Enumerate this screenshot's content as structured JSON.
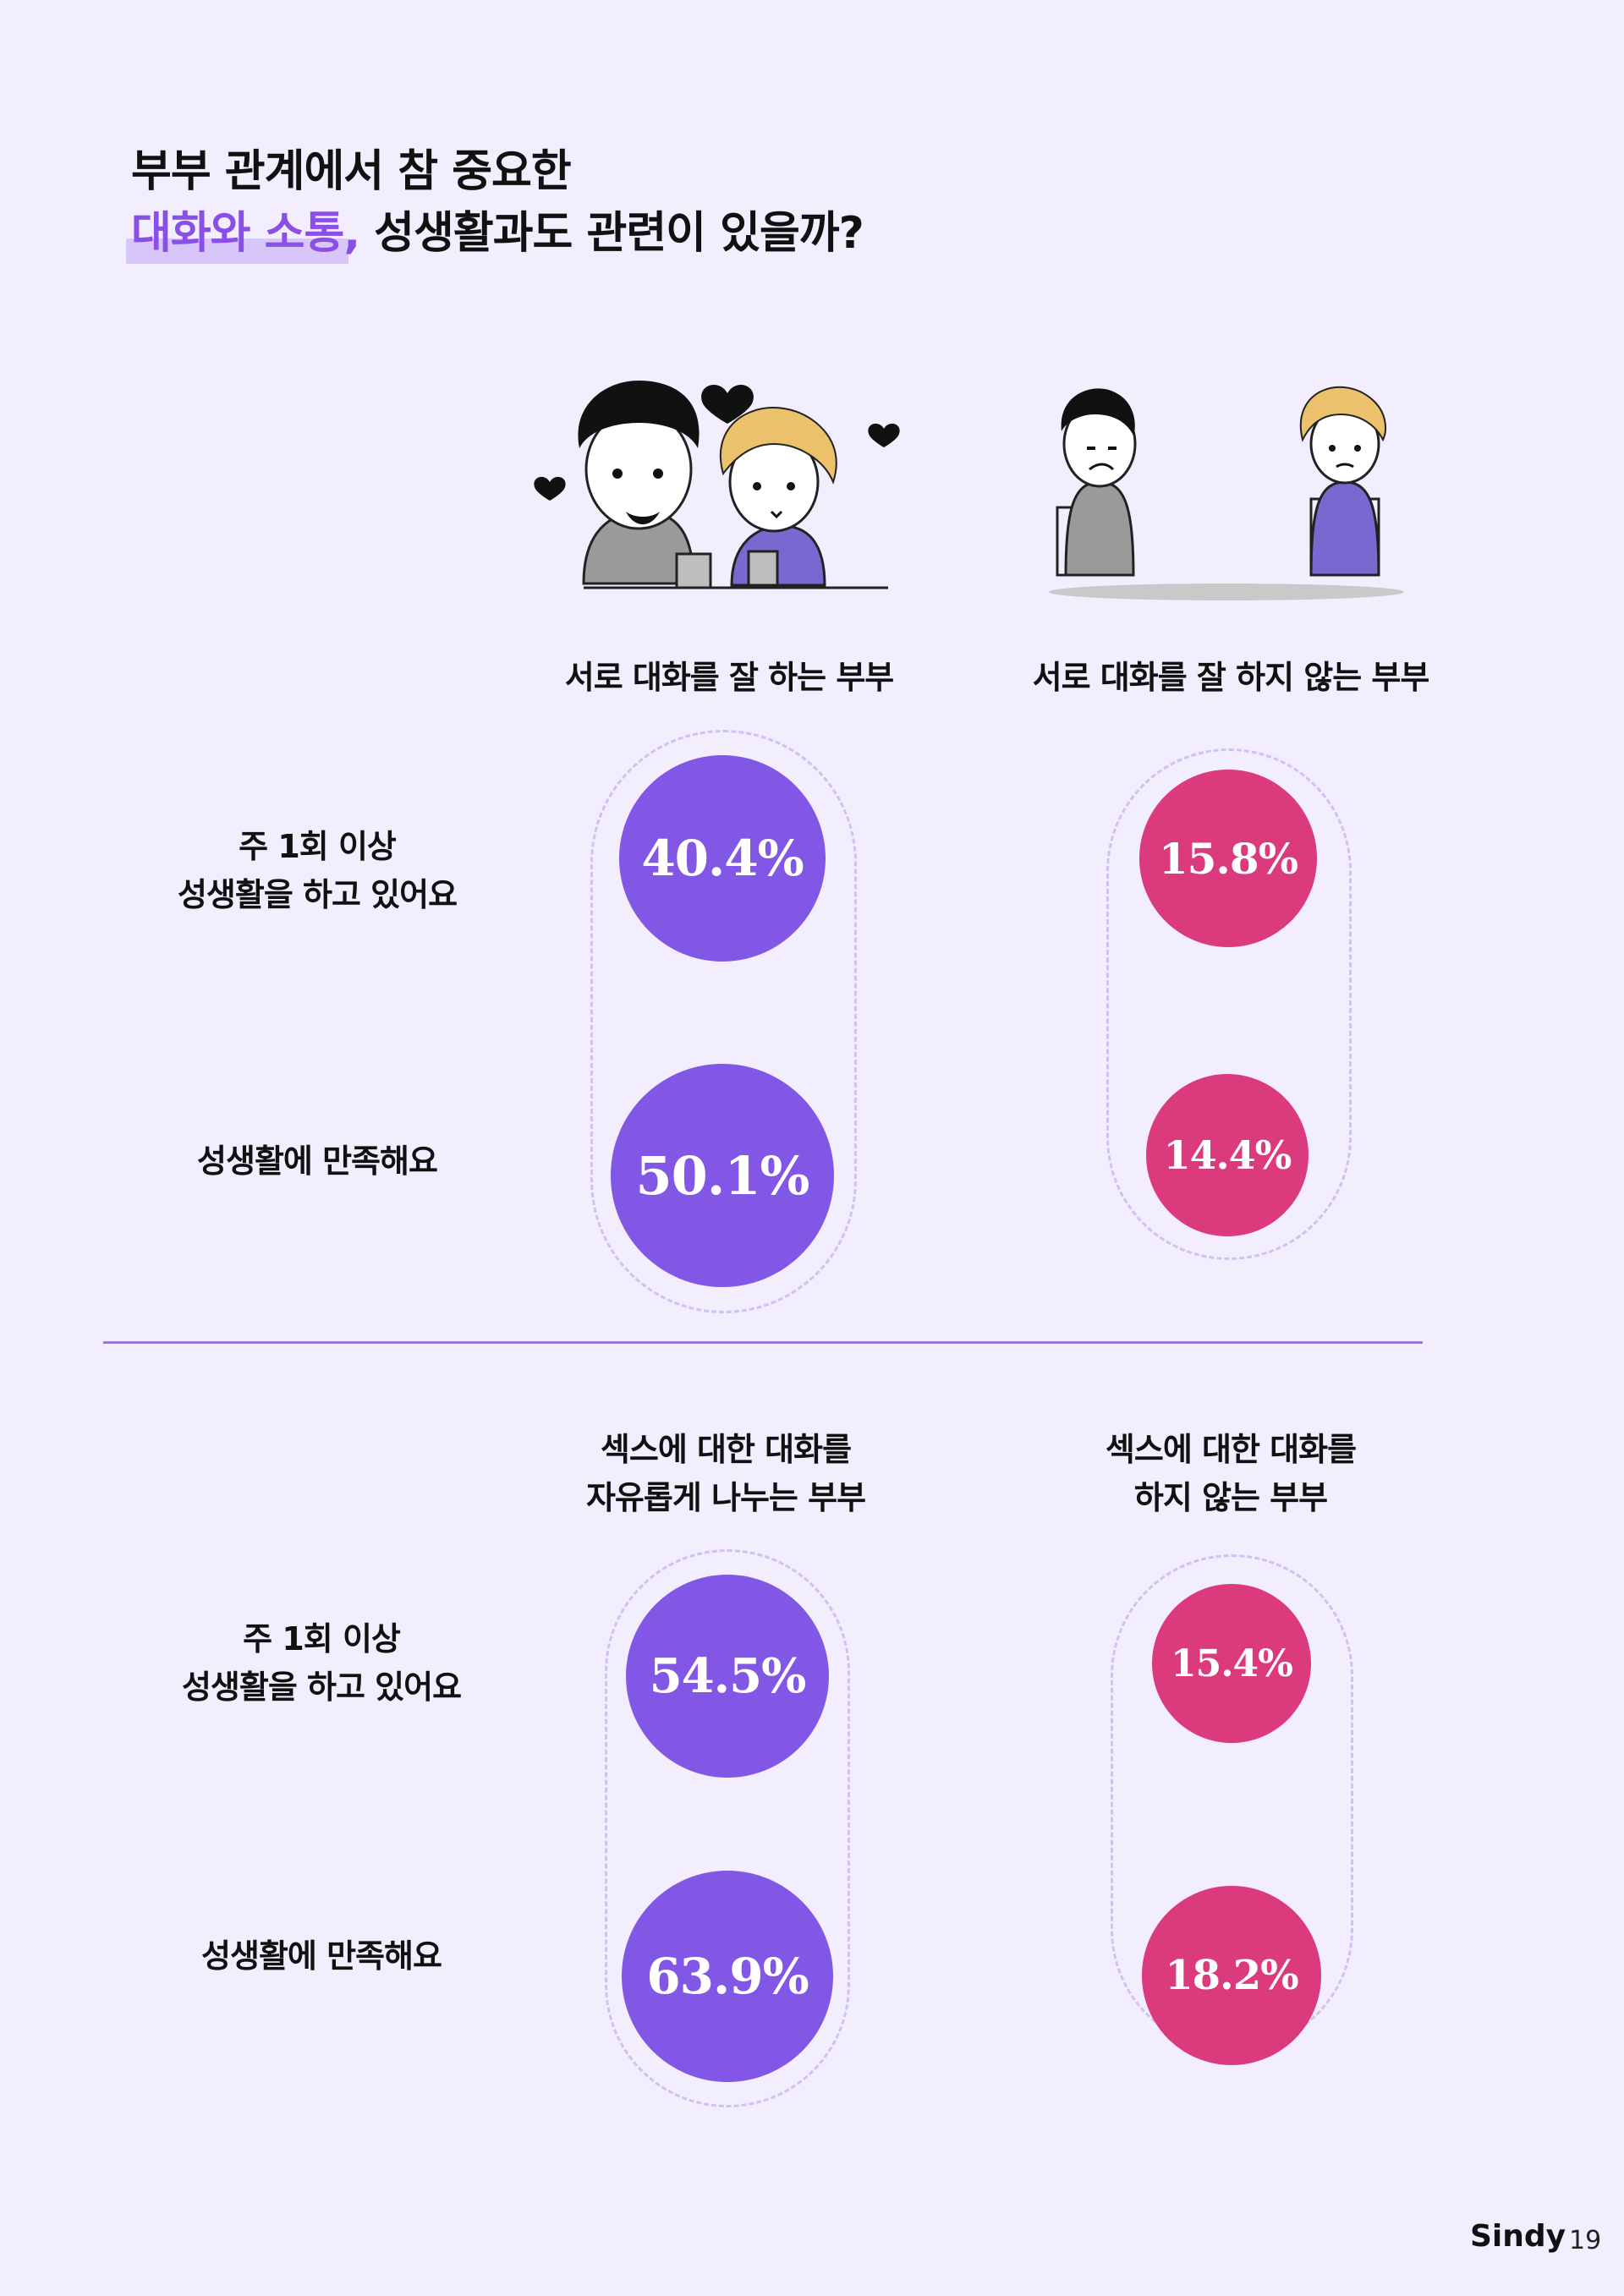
{
  "heading": {
    "line1": "부부 관계에서 참 중요한",
    "highlight": "대화와 소통",
    "comma": ",",
    "line2_rest": " 성생활과도 관련이 있을까?"
  },
  "section1": {
    "col_left": "서로 대화를 잘 하는 부부",
    "col_right": "서로 대화를 잘 하지 않는 부부",
    "row1_label": [
      "주 1회 이상",
      "성생활을 하고 있어요"
    ],
    "row2_label": "성생활에 만족해요",
    "left_values": [
      "40.4%",
      "50.1%"
    ],
    "right_values": [
      "15.8%",
      "14.4%"
    ]
  },
  "section2": {
    "col_left": [
      "섹스에 대한 대화를",
      "자유롭게 나누는 부부"
    ],
    "col_right": [
      "섹스에 대한 대화를",
      "하지 않는 부부"
    ],
    "row1_label": [
      "주 1회 이상",
      "성생활을 하고 있어요"
    ],
    "row2_label": "성생활에 만족해요",
    "left_values": [
      "54.5%",
      "63.9%"
    ],
    "right_values": [
      "15.4%",
      "18.2%"
    ]
  },
  "colors": {
    "purple": "#8257e6",
    "pink": "#db3a7c",
    "background": "#f3eefd"
  },
  "footer": {
    "brand": "Sindy",
    "page": "19"
  }
}
